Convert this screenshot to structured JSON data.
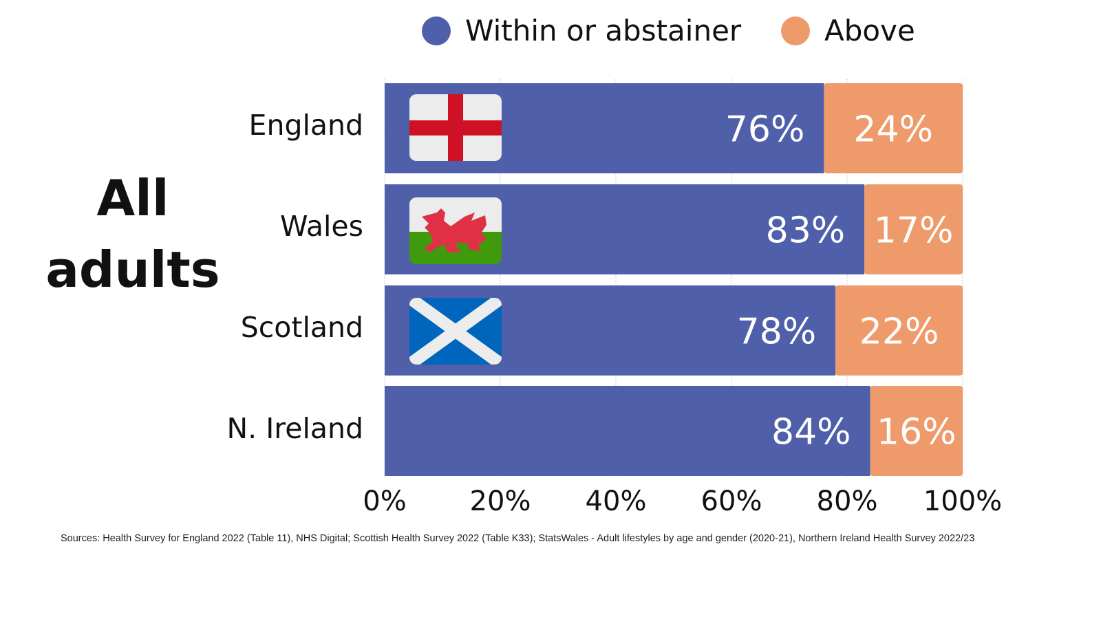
{
  "chart_data": {
    "type": "bar",
    "orientation": "horizontal",
    "stacked": true,
    "title": "All adults",
    "categories": [
      "England",
      "Wales",
      "Scotland",
      "N. Ireland"
    ],
    "series": [
      {
        "name": "Within or abstainer",
        "color": "#4f5faa",
        "values": [
          76,
          83,
          78,
          84
        ],
        "labels": [
          "76%",
          "83%",
          "78%",
          "84%"
        ]
      },
      {
        "name": "Above",
        "color": "#ee9a6a",
        "values": [
          24,
          17,
          22,
          16
        ],
        "labels": [
          "24%",
          "17%",
          "22%",
          "16%"
        ]
      }
    ],
    "xlim": [
      0,
      100
    ],
    "xticks": [
      "0%",
      "20%",
      "40%",
      "60%",
      "80%",
      "100%"
    ],
    "grid": true,
    "legend": "top"
  },
  "title_lines": [
    "All",
    "adults"
  ],
  "flags": [
    "england-flag",
    "wales-flag",
    "scotland-flag"
  ],
  "source": "Sources: Health Survey for England 2022 (Table 11), NHS Digital; Scottish Health Survey 2022 (Table K33); StatsWales - Adult lifestyles by age and gender (2020-21), Northern Ireland Health Survey 2022/23"
}
